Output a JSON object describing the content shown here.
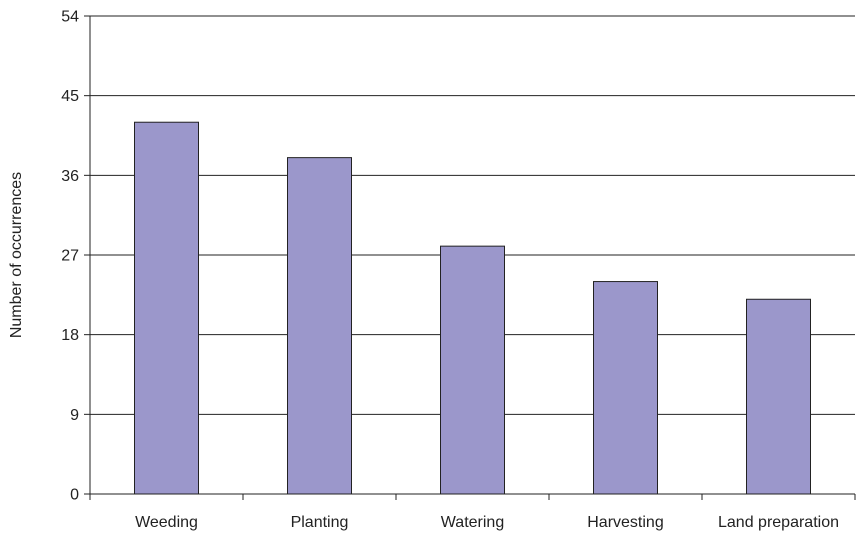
{
  "chart_data": {
    "type": "bar",
    "title": "",
    "xlabel": "",
    "ylabel": "Number of occurrences",
    "categories": [
      "Weeding",
      "Planting",
      "Watering",
      "Harvesting",
      "Land preparation"
    ],
    "values": [
      42,
      38,
      28,
      24,
      22
    ],
    "ylim": [
      0,
      54
    ],
    "yticks": [
      0,
      9,
      18,
      27,
      36,
      45,
      54
    ],
    "grid": true,
    "legend": "none",
    "colors": {
      "bar_fill": "#9b97cb",
      "bar_stroke": "#222222",
      "gridline": "#222222",
      "axis": "#222222"
    }
  }
}
